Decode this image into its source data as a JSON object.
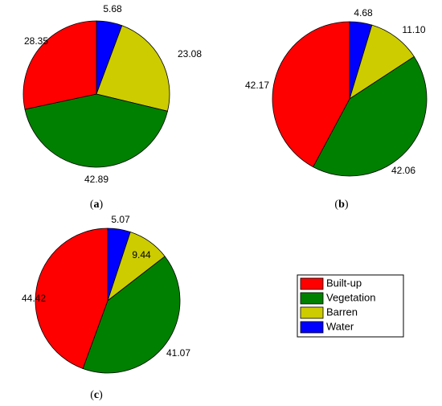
{
  "colors": {
    "Built-up": "#ff0000",
    "Vegetation": "#008000",
    "Barren": "#cccc00",
    "Water": "#0000ff"
  },
  "legend": [
    "Built-up",
    "Vegetation",
    "Barren",
    "Water"
  ],
  "chart_data": [
    {
      "type": "pie",
      "caption": {
        "open": "(",
        "letter": "a",
        "close": ")"
      },
      "slices": [
        {
          "label": "Water",
          "value": 5.68
        },
        {
          "label": "Barren",
          "value": 23.08
        },
        {
          "label": "Vegetation",
          "value": 42.89
        },
        {
          "label": "Built-up",
          "value": 28.35
        }
      ]
    },
    {
      "type": "pie",
      "caption": {
        "open": "(",
        "letter": "b",
        "close": ")"
      },
      "slices": [
        {
          "label": "Water",
          "value": 4.68
        },
        {
          "label": "Barren",
          "value": 11.1
        },
        {
          "label": "Vegetation",
          "value": 42.06
        },
        {
          "label": "Built-up",
          "value": 42.17
        }
      ]
    },
    {
      "type": "pie",
      "caption": {
        "open": "(",
        "letter": "c",
        "close": ")"
      },
      "slices": [
        {
          "label": "Water",
          "value": 5.07
        },
        {
          "label": "Barren",
          "value": 9.44
        },
        {
          "label": "Vegetation",
          "value": 41.07
        },
        {
          "label": "Built-up",
          "value": 44.42
        }
      ]
    }
  ]
}
